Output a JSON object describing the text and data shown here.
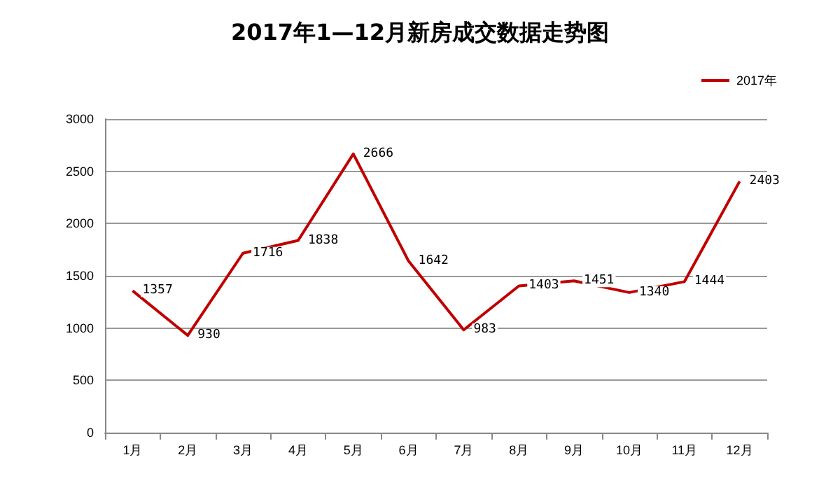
{
  "chart_data": {
    "type": "line",
    "title": "2017年1—12月新房成交数据走势图",
    "categories": [
      "1月",
      "2月",
      "3月",
      "4月",
      "5月",
      "6月",
      "7月",
      "8月",
      "9月",
      "10月",
      "11月",
      "12月"
    ],
    "series": [
      {
        "name": "2017年",
        "color": "#c00000",
        "values": [
          1357,
          930,
          1716,
          1838,
          2666,
          1642,
          983,
          1403,
          1451,
          1340,
          1444,
          2403
        ]
      }
    ],
    "ylim": [
      0,
      3000
    ],
    "yticks": [
      0,
      500,
      1000,
      1500,
      2000,
      2500,
      3000
    ],
    "grid": "y",
    "legend": "top right",
    "data_labels": true,
    "marker": "none",
    "line_style": "solid"
  }
}
